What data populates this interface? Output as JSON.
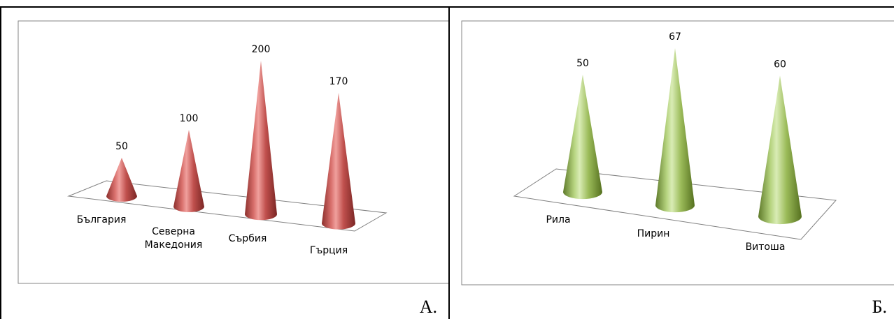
{
  "panels": [
    {
      "label": "А.",
      "color": "#c0504d"
    },
    {
      "label": "Б.",
      "color": "#9bbb59"
    }
  ],
  "chart_data": [
    {
      "type": "bar",
      "categories": [
        "България",
        "Северна\nМакедония",
        "Сърбия",
        "Гърция"
      ],
      "values": [
        50,
        100,
        200,
        170
      ],
      "data_labels": [
        "50",
        "100",
        "200",
        "170"
      ],
      "title": "",
      "xlabel": "",
      "ylabel": "",
      "ylim": [
        0,
        220
      ],
      "grid": false,
      "legend": "none",
      "mark_shape": "cone",
      "color": "#c0504d"
    },
    {
      "type": "bar",
      "categories": [
        "Рила",
        "Пирин",
        "Витоша"
      ],
      "values": [
        50,
        67,
        60
      ],
      "data_labels": [
        "50",
        "67",
        "60"
      ],
      "title": "",
      "xlabel": "",
      "ylabel": "",
      "ylim": [
        0,
        70
      ],
      "grid": false,
      "legend": "none",
      "mark_shape": "cone",
      "color": "#9bbb59"
    }
  ]
}
